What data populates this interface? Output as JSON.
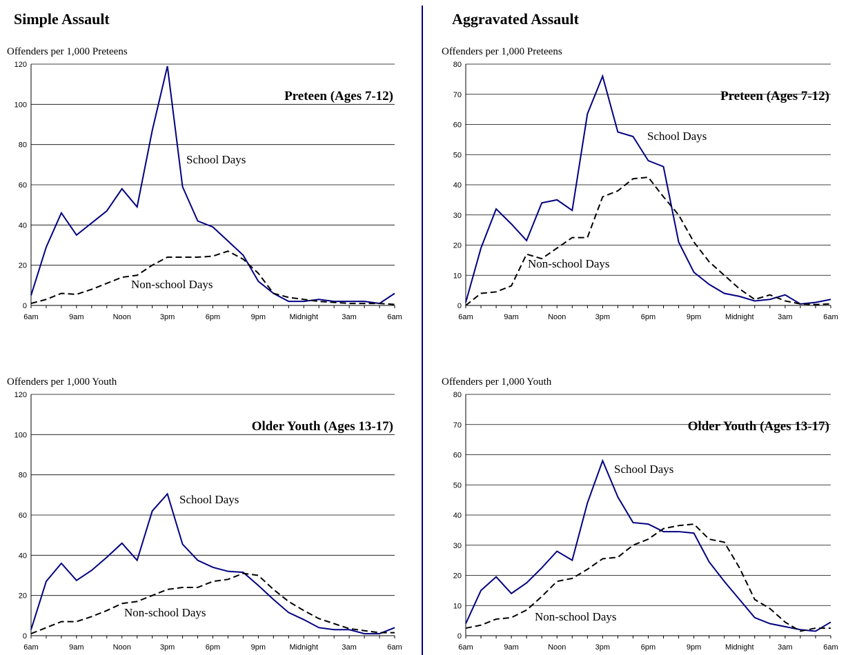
{
  "columns": [
    "Simple Assault",
    "Aggravated Assault"
  ],
  "chart_data": [
    {
      "type": "line",
      "title": "Preteen (Ages 7-12)",
      "ylabel": "Offenders per 1,000 Preteens",
      "categories": [
        "6am",
        null,
        null,
        "9am",
        null,
        null,
        "Noon",
        null,
        null,
        "3pm",
        null,
        null,
        "6pm",
        null,
        null,
        "9pm",
        null,
        null,
        "Midnight",
        null,
        null,
        "3am",
        null,
        null,
        "6am"
      ],
      "ylim": [
        0,
        120
      ],
      "yticks": [
        0,
        20,
        40,
        60,
        80,
        100,
        120
      ],
      "grid": true,
      "series": [
        {
          "name": "School Days",
          "color": "#000080",
          "dash": false,
          "values": [
            5,
            29,
            46,
            35,
            41,
            47,
            58,
            49,
            87,
            119,
            59,
            42,
            39,
            32,
            25,
            12,
            6,
            2,
            2,
            3,
            2,
            2,
            2,
            1,
            6
          ]
        },
        {
          "name": "Non-school Days",
          "color": "#000000",
          "dash": true,
          "values": [
            1,
            3,
            6,
            5.5,
            8,
            11,
            14,
            15,
            20,
            24,
            24,
            24,
            24.5,
            27,
            23,
            16,
            6,
            4,
            3,
            2,
            1.5,
            1,
            1,
            1,
            0.5
          ]
        }
      ]
    },
    {
      "type": "line",
      "title": "Preteen (Ages 7-12)",
      "ylabel": "Offenders per 1,000 Preteens",
      "categories": [
        "6am",
        null,
        null,
        "9am",
        null,
        null,
        "Noon",
        null,
        null,
        "3pm",
        null,
        null,
        "6pm",
        null,
        null,
        "9pm",
        null,
        null,
        "Midnight",
        null,
        null,
        "3am",
        null,
        null,
        "6am"
      ],
      "ylim": [
        0,
        80
      ],
      "yticks": [
        0,
        10,
        20,
        30,
        40,
        50,
        60,
        70,
        80
      ],
      "grid": true,
      "series": [
        {
          "name": "School Days",
          "color": "#000080",
          "dash": false,
          "values": [
            1,
            19,
            32,
            27,
            21.5,
            34,
            35,
            31.5,
            63.5,
            76,
            57.5,
            56,
            48,
            46,
            21,
            11,
            7,
            4,
            3,
            1.5,
            2,
            3.5,
            0.5,
            1,
            2
          ]
        },
        {
          "name": "Non-school Days",
          "color": "#000000",
          "dash": true,
          "values": [
            0,
            4,
            4.5,
            6.5,
            17,
            15.5,
            19,
            22.5,
            22.5,
            36,
            38,
            42,
            42.5,
            36,
            30,
            21,
            14.5,
            10,
            5.5,
            2,
            3.5,
            1.5,
            0.5,
            0.3,
            0.5
          ]
        }
      ]
    },
    {
      "type": "line",
      "title": "Older Youth (Ages 13-17)",
      "ylabel": "Offenders per 1,000 Youth",
      "categories": [
        "6am",
        null,
        null,
        "9am",
        null,
        null,
        "Noon",
        null,
        null,
        "3pm",
        null,
        null,
        "6pm",
        null,
        null,
        "9pm",
        null,
        null,
        "Midnight",
        null,
        null,
        "3am",
        null,
        null,
        "6am"
      ],
      "ylim": [
        0,
        120
      ],
      "yticks": [
        0,
        20,
        40,
        60,
        80,
        100,
        120
      ],
      "grid": true,
      "series": [
        {
          "name": "School Days",
          "color": "#000080",
          "dash": false,
          "values": [
            3,
            27,
            36,
            27.5,
            32.5,
            39,
            46,
            37.5,
            62,
            70.5,
            45.5,
            37.5,
            34,
            32,
            31.5,
            25,
            18,
            11.5,
            8,
            4,
            3,
            3,
            1,
            1,
            4
          ]
        },
        {
          "name": "Non-school Days",
          "color": "#000000",
          "dash": true,
          "values": [
            1,
            4,
            7,
            7,
            9.5,
            12.5,
            16,
            17,
            20,
            23,
            24,
            24,
            27,
            28,
            31,
            30,
            23,
            17,
            12.5,
            8.5,
            6,
            3.5,
            2.5,
            1.5,
            1.5
          ]
        }
      ]
    },
    {
      "type": "line",
      "title": "Older Youth (Ages 13-17)",
      "ylabel": "Offenders per 1,000 Youth",
      "categories": [
        "6am",
        null,
        null,
        "9am",
        null,
        null,
        "Noon",
        null,
        null,
        "3pm",
        null,
        null,
        "6pm",
        null,
        null,
        "9pm",
        null,
        null,
        "Midnight",
        null,
        null,
        "3am",
        null,
        null,
        "6am"
      ],
      "ylim": [
        0,
        80
      ],
      "yticks": [
        0,
        10,
        20,
        30,
        40,
        50,
        60,
        70,
        80
      ],
      "grid": true,
      "series": [
        {
          "name": "School Days",
          "color": "#000080",
          "dash": false,
          "values": [
            4,
            15,
            19.5,
            14,
            17.5,
            22.5,
            28,
            25,
            44,
            58,
            46,
            37.5,
            37,
            34.5,
            34.5,
            34,
            24.5,
            18,
            12,
            6,
            4,
            3,
            2,
            1.5,
            4.5
          ]
        },
        {
          "name": "Non-school Days",
          "color": "#000000",
          "dash": true,
          "values": [
            2.5,
            3.5,
            5.5,
            6,
            8.5,
            13,
            18,
            19,
            22,
            25.5,
            26,
            30,
            32,
            35.5,
            36.5,
            37,
            32,
            31,
            22.5,
            12,
            9,
            4.5,
            1.5,
            2.5,
            2.5
          ]
        }
      ]
    }
  ]
}
